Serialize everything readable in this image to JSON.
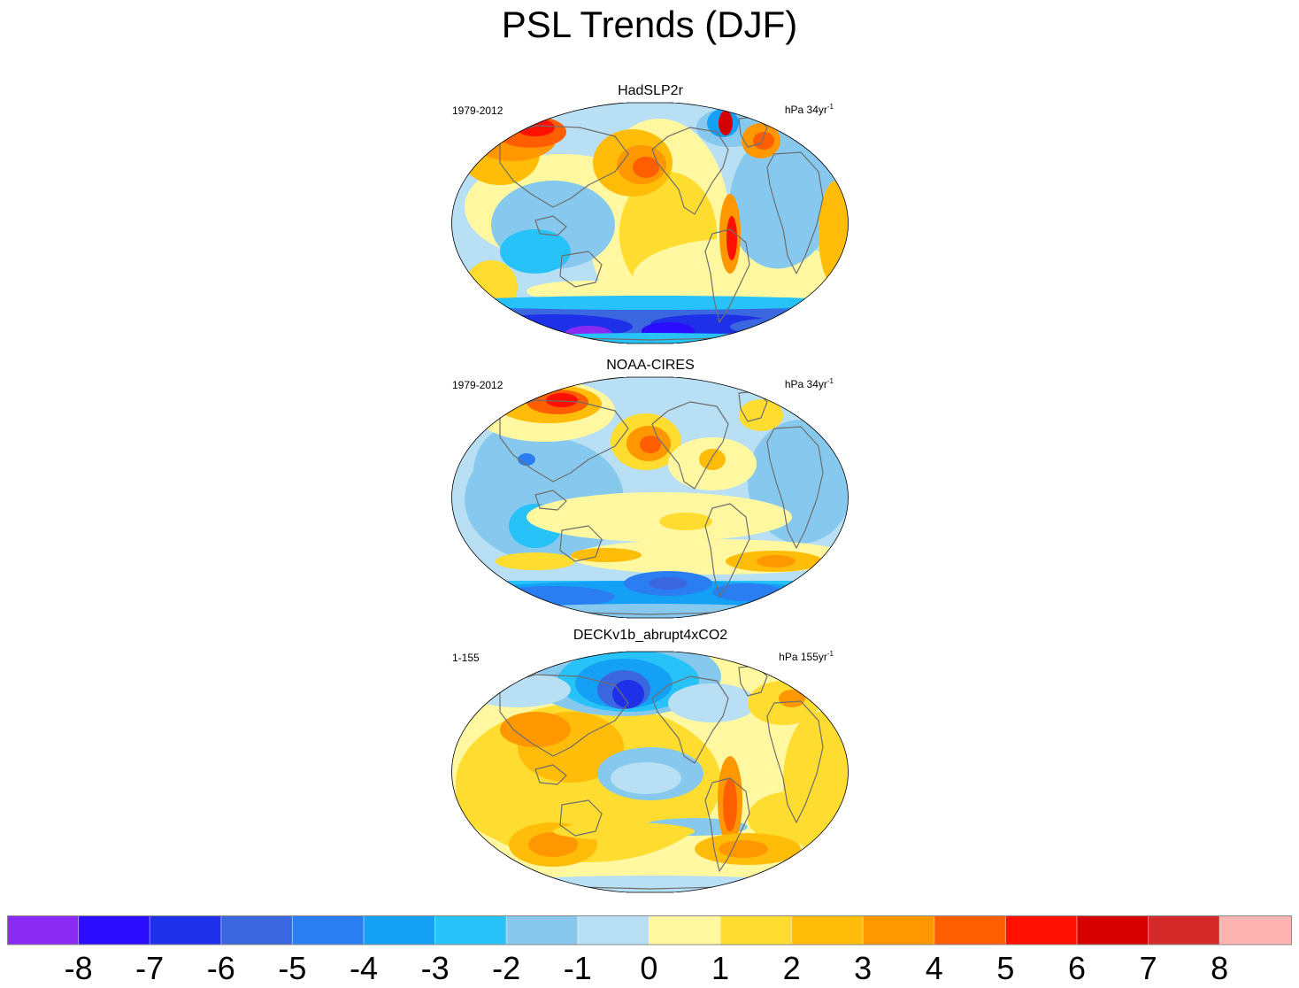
{
  "title": "PSL Trends (DJF)",
  "panels": [
    {
      "name": "HadSLP2r",
      "period": "1979-2012",
      "units_prefix": "hPa 34yr",
      "units_exp": "-1",
      "pattern": "hadslp"
    },
    {
      "name": "NOAA-CIRES",
      "period": "1979-2012",
      "units_prefix": "hPa 34yr",
      "units_exp": "-1",
      "pattern": "noaa"
    },
    {
      "name": "DECKv1b_abrupt4xCO2",
      "period": "1-155",
      "units_prefix": "hPa 155yr",
      "units_exp": "-1",
      "pattern": "deck"
    }
  ],
  "colorbar": {
    "colors": [
      "#8a2af2",
      "#2b0cfd",
      "#1f31e8",
      "#3a66e0",
      "#2b7df2",
      "#14a1f5",
      "#27c2f7",
      "#87c9ee",
      "#b8dff3",
      "#fff8a0",
      "#ffdc30",
      "#ffbc08",
      "#ff9700",
      "#ff5e00",
      "#ff1000",
      "#d60000",
      "#d42a2a",
      "#ffb4b4"
    ],
    "labels": [
      "-8",
      "-7",
      "-6",
      "-5",
      "-4",
      "-3",
      "-2",
      "-1",
      "0",
      "1",
      "2",
      "3",
      "4",
      "5",
      "6",
      "7",
      "8"
    ]
  }
}
